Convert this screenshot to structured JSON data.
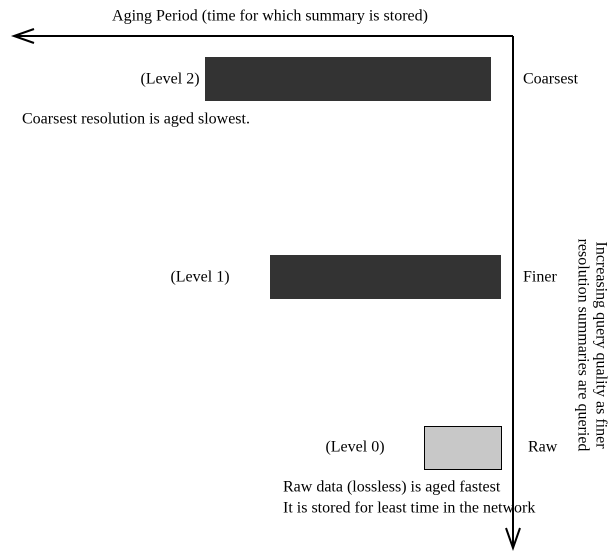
{
  "axis_title": "Aging Period (time for which summary is stored)",
  "vertical_label": [
    "Increasing query quality as finer",
    "resolution summaries are queried"
  ],
  "levels": [
    {
      "label": "(Level 2)",
      "resolution": "Coarsest",
      "note": [
        "Coarsest resolution is aged slowest."
      ]
    },
    {
      "label": "(Level 1)",
      "resolution": "Finer"
    },
    {
      "label": "(Level 0)",
      "resolution": "Raw",
      "note": [
        "Raw data (lossless) is aged fastest",
        "It is stored for least time in the network"
      ]
    }
  ]
}
